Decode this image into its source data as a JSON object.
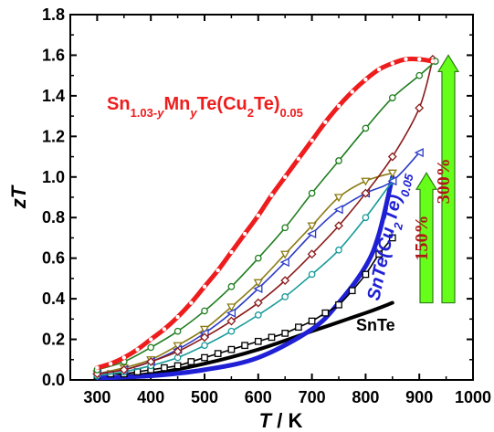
{
  "chart_data": {
    "type": "line",
    "xlabel_var": "T",
    "xlabel_unit": "/ K",
    "ylabel": "zT",
    "xlim": [
      250,
      1000
    ],
    "ylim": [
      0,
      1.8
    ],
    "xticks": [
      300,
      400,
      500,
      600,
      700,
      800,
      900,
      1000
    ],
    "yticks": [
      0.0,
      0.2,
      0.4,
      0.6,
      0.8,
      1.0,
      1.2,
      1.4,
      1.6,
      1.8
    ],
    "annotations": {
      "main_formula": {
        "parts": [
          {
            "text": "Sn",
            "sub": false
          },
          {
            "text": "1.03-",
            "sub": true
          },
          {
            "text": "y",
            "sub": true,
            "italic": true
          },
          {
            "text": "Mn",
            "sub": false
          },
          {
            "text": "y",
            "sub": true,
            "italic": true
          },
          {
            "text": "Te(Cu",
            "sub": false
          },
          {
            "text": "2",
            "sub": true
          },
          {
            "text": "Te)",
            "sub": false
          },
          {
            "text": "0.05",
            "sub": true
          }
        ],
        "color": "#ee1c1c"
      },
      "cu_formula": {
        "parts": [
          {
            "text": "SnTe(Cu",
            "sub": false
          },
          {
            "text": "2",
            "sub": true
          },
          {
            "text": "Te)",
            "sub": false
          },
          {
            "text": "0.05",
            "sub": true
          }
        ],
        "color": "#1f1fd6"
      },
      "snte_label": "SnTe",
      "arrow_150": "150%",
      "arrow_300": "300%"
    },
    "series": [
      {
        "key": "snte_thick",
        "color": "#000000",
        "marker": "none",
        "width": 4,
        "x": [
          300,
          400,
          500,
          600,
          700,
          800,
          850
        ],
        "y": [
          0.01,
          0.03,
          0.08,
          0.15,
          0.24,
          0.33,
          0.38
        ]
      },
      {
        "key": "cu_thick",
        "color": "#1f1fd6",
        "marker": "none",
        "width": 5,
        "x": [
          300,
          400,
          500,
          600,
          700,
          750,
          800,
          825,
          850
        ],
        "y": [
          0.01,
          0.02,
          0.05,
          0.11,
          0.25,
          0.38,
          0.56,
          0.72,
          1.0
        ]
      },
      {
        "key": "black",
        "color": "#000000",
        "marker": "square",
        "x": [
          300,
          325,
          350,
          375,
          400,
          425,
          450,
          475,
          500,
          525,
          550,
          575,
          600,
          625,
          650,
          675,
          700,
          725,
          750,
          775,
          800,
          825,
          850
        ],
        "y": [
          0.02,
          0.03,
          0.03,
          0.04,
          0.05,
          0.06,
          0.07,
          0.09,
          0.11,
          0.13,
          0.15,
          0.17,
          0.19,
          0.21,
          0.23,
          0.26,
          0.29,
          0.33,
          0.37,
          0.44,
          0.52,
          0.62,
          0.7
        ]
      },
      {
        "key": "cyan",
        "color": "#179a9a",
        "marker": "circle",
        "x": [
          300,
          350,
          400,
          450,
          500,
          550,
          600,
          650,
          700,
          750,
          800,
          850
        ],
        "y": [
          0.02,
          0.04,
          0.07,
          0.11,
          0.17,
          0.24,
          0.32,
          0.41,
          0.52,
          0.64,
          0.8,
          0.98
        ]
      },
      {
        "key": "olive",
        "color": "#8a7a12",
        "marker": "triangle-down",
        "x": [
          300,
          350,
          400,
          450,
          500,
          550,
          600,
          650,
          700,
          750,
          800,
          850
        ],
        "y": [
          0.03,
          0.06,
          0.1,
          0.17,
          0.25,
          0.36,
          0.48,
          0.62,
          0.76,
          0.9,
          0.98,
          1.02
        ]
      },
      {
        "key": "blue",
        "color": "#2b3cc6",
        "marker": "triangle-left",
        "x": [
          300,
          350,
          400,
          450,
          500,
          550,
          600,
          650,
          700,
          750,
          800,
          850,
          900
        ],
        "y": [
          0.03,
          0.05,
          0.09,
          0.15,
          0.23,
          0.33,
          0.45,
          0.58,
          0.72,
          0.84,
          0.92,
          0.98,
          1.12
        ]
      },
      {
        "key": "maroon",
        "color": "#8b1a1a",
        "marker": "diamond",
        "x": [
          300,
          350,
          400,
          450,
          500,
          550,
          600,
          650,
          700,
          750,
          800,
          850,
          900,
          925
        ],
        "y": [
          0.03,
          0.05,
          0.09,
          0.14,
          0.21,
          0.29,
          0.38,
          0.49,
          0.62,
          0.76,
          0.92,
          1.1,
          1.34,
          1.58
        ]
      },
      {
        "key": "green",
        "color": "#1e7d1e",
        "marker": "circle",
        "x": [
          300,
          350,
          400,
          450,
          500,
          550,
          600,
          650,
          700,
          750,
          800,
          850,
          900,
          930
        ],
        "y": [
          0.05,
          0.09,
          0.16,
          0.24,
          0.34,
          0.46,
          0.6,
          0.75,
          0.92,
          1.08,
          1.24,
          1.39,
          1.5,
          1.57
        ]
      },
      {
        "key": "red",
        "color": "#ee1c1c",
        "marker": "circle-small",
        "width": 5,
        "x": [
          300,
          325,
          350,
          375,
          400,
          425,
          450,
          475,
          500,
          525,
          550,
          575,
          600,
          625,
          650,
          675,
          700,
          725,
          750,
          775,
          800,
          825,
          850,
          875,
          900,
          925
        ],
        "y": [
          0.06,
          0.08,
          0.11,
          0.15,
          0.2,
          0.25,
          0.31,
          0.38,
          0.46,
          0.54,
          0.63,
          0.72,
          0.81,
          0.91,
          1.0,
          1.09,
          1.18,
          1.27,
          1.35,
          1.42,
          1.48,
          1.53,
          1.56,
          1.58,
          1.58,
          1.57
        ]
      }
    ]
  }
}
